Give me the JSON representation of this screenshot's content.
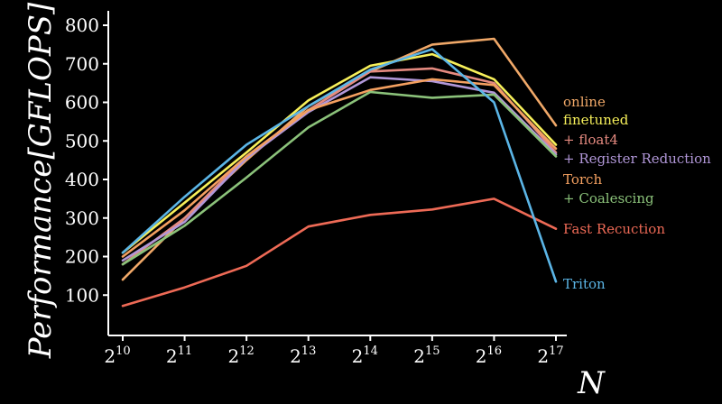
{
  "chart_data": {
    "type": "line",
    "ylabel": "Performance[GFLOPS]",
    "xlabel": "N",
    "x_exponents": [
      10,
      11,
      12,
      13,
      14,
      15,
      16,
      17
    ],
    "xtick_base": "2",
    "ylim": [
      0,
      800
    ],
    "yticks": [
      "100",
      "200",
      "300",
      "400",
      "500",
      "600",
      "700",
      "800"
    ],
    "grid": false,
    "legend": "right, labels beside line ends",
    "series": [
      {
        "name": "online",
        "color": "#f0a868",
        "values": [
          140,
          300,
          450,
          590,
          680,
          750,
          765,
          540
        ]
      },
      {
        "name": "finetuned",
        "color": "#f7f05a",
        "values": [
          210,
          340,
          470,
          605,
          695,
          725,
          660,
          490
        ]
      },
      {
        "name": "+ float4",
        "color": "#e58a80",
        "values": [
          180,
          300,
          460,
          580,
          680,
          688,
          650,
          470
        ]
      },
      {
        "name": "+ Register Reduction",
        "color": "#b197d8",
        "values": [
          190,
          290,
          455,
          575,
          665,
          655,
          625,
          465
        ]
      },
      {
        "name": "Torch",
        "color": "#f4a060",
        "values": [
          200,
          320,
          460,
          580,
          632,
          660,
          645,
          480
        ]
      },
      {
        "name": "+ Coalescing",
        "color": "#8bc27a",
        "values": [
          180,
          280,
          405,
          535,
          627,
          612,
          620,
          460
        ]
      },
      {
        "name": "Fast Recuction",
        "color": "#ee6a56",
        "values": [
          72,
          120,
          176,
          278,
          308,
          322,
          350,
          272
        ]
      },
      {
        "name": "Triton",
        "color": "#5bb5e6",
        "values": [
          210,
          355,
          490,
          590,
          685,
          738,
          600,
          135
        ]
      }
    ]
  }
}
